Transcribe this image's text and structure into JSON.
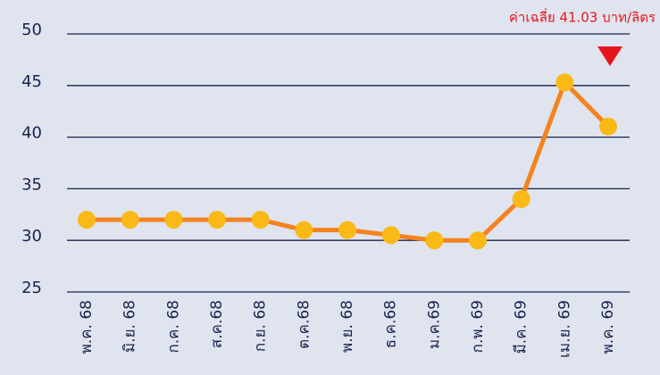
{
  "chart_data": {
    "type": "line",
    "annotation": "ค่าเฉลี่ย 41.03 บาท/ลิตร",
    "categories": [
      "พ.ค. 68",
      "มิ.ย. 68",
      "ก.ค. 68",
      "ส.ค.68",
      "ก.ย. 68",
      "ต.ค.68",
      "พ.ย. 68",
      "ธ.ค.68",
      "ม.ค.69",
      "ก.พ. 69",
      "มี.ค. 69",
      "เม.ย. 69",
      "พ.ค. 69"
    ],
    "series": [
      {
        "color": "#f5821f",
        "marker_color": "#fbb917",
        "values": [
          32,
          32,
          32,
          32,
          32,
          31,
          31,
          30.5,
          30,
          30,
          34,
          45.3,
          41.03
        ]
      }
    ],
    "ylim": [
      25,
      50
    ],
    "yticks": [
      25,
      30,
      35,
      40,
      45,
      50
    ],
    "grid": true
  }
}
